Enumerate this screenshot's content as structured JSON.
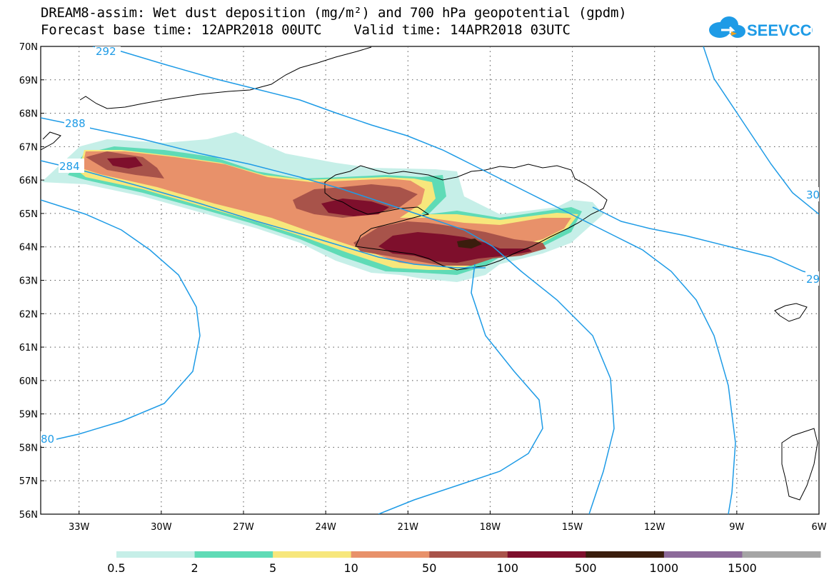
{
  "title": {
    "line1": "DREAM8-assim: Wet dust deposition (mg/m²) and 700 hPa geopotential (gpdm)",
    "line2": "Forecast base time: 12APR2018 00UTC    Valid time: 14APR2018 03UTC"
  },
  "logo": {
    "text": "SEEVCCC",
    "icon": "cloud-icon",
    "color": "#1e9be6"
  },
  "map": {
    "lat_labels": [
      "70N",
      "69N",
      "68N",
      "67N",
      "66N",
      "65N",
      "64N",
      "63N",
      "62N",
      "61N",
      "60N",
      "59N",
      "58N",
      "57N",
      "56N"
    ],
    "lon_labels": [
      "33W",
      "30W",
      "27W",
      "24W",
      "21W",
      "18W",
      "15W",
      "12W",
      "9W",
      "6W"
    ],
    "lon_range": [
      -34.4,
      -6
    ],
    "lat_range": [
      56,
      70
    ],
    "contour_color": "#1e9be6",
    "contour_labels": [
      "292",
      "288",
      "284",
      "80",
      "30",
      "29"
    ]
  },
  "legend": {
    "labels": [
      "0.5",
      "2",
      "5",
      "10",
      "50",
      "100",
      "500",
      "1000",
      "1500"
    ],
    "colors": [
      "#c6efe8",
      "#5fdbb6",
      "#f7e77c",
      "#e8916a",
      "#a8534a",
      "#7e0f2c",
      "#3a1d0d",
      "#8c6a9a",
      "#a5a5a5"
    ]
  }
}
